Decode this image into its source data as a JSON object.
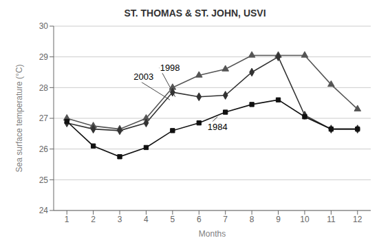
{
  "chart_data": {
    "type": "line",
    "title": "ST. THOMAS & ST. JOHN, USVI",
    "x_label": "Months",
    "y_label": "Sea surface temperature (°C)",
    "x": [
      1,
      2,
      3,
      4,
      5,
      6,
      7,
      8,
      9,
      10,
      11,
      12
    ],
    "series": [
      {
        "name": "1998",
        "color": "#555555",
        "marker": "triangle",
        "values": [
          27.0,
          26.75,
          26.65,
          27.0,
          28.0,
          28.4,
          28.6,
          29.05,
          29.05,
          29.05,
          28.1,
          27.3
        ]
      },
      {
        "name": "2003",
        "color": "#333333",
        "marker": "diamond",
        "values": [
          26.85,
          26.65,
          26.6,
          26.85,
          27.85,
          27.7,
          27.75,
          28.5,
          29.0,
          27.1,
          26.65,
          26.65
        ]
      },
      {
        "name": "1984",
        "color": "#111111",
        "marker": "square",
        "values": [
          26.9,
          26.1,
          25.75,
          26.05,
          26.6,
          26.85,
          27.2,
          27.45,
          27.6,
          27.05,
          26.65,
          26.65
        ]
      }
    ],
    "xlim": [
      0.5,
      12.5
    ],
    "xticks": [
      1,
      2,
      3,
      4,
      5,
      6,
      7,
      8,
      9,
      10,
      11,
      12
    ],
    "ylim": [
      24,
      30
    ],
    "yticks": [
      24,
      25,
      26,
      27,
      28,
      29,
      30
    ],
    "grid": true,
    "annotations": [
      {
        "text": "1998",
        "x": 4.5,
        "y": 28.65,
        "arrow_x": 5.1,
        "arrow_y": 27.7
      },
      {
        "text": "2003",
        "x": 3.5,
        "y": 28.35,
        "arrow_x": 4.9,
        "arrow_y": 27.6
      },
      {
        "text": "1984",
        "x": 6.3,
        "y": 26.72,
        "arrow_x": 6.7,
        "arrow_y": 27.05
      }
    ]
  }
}
